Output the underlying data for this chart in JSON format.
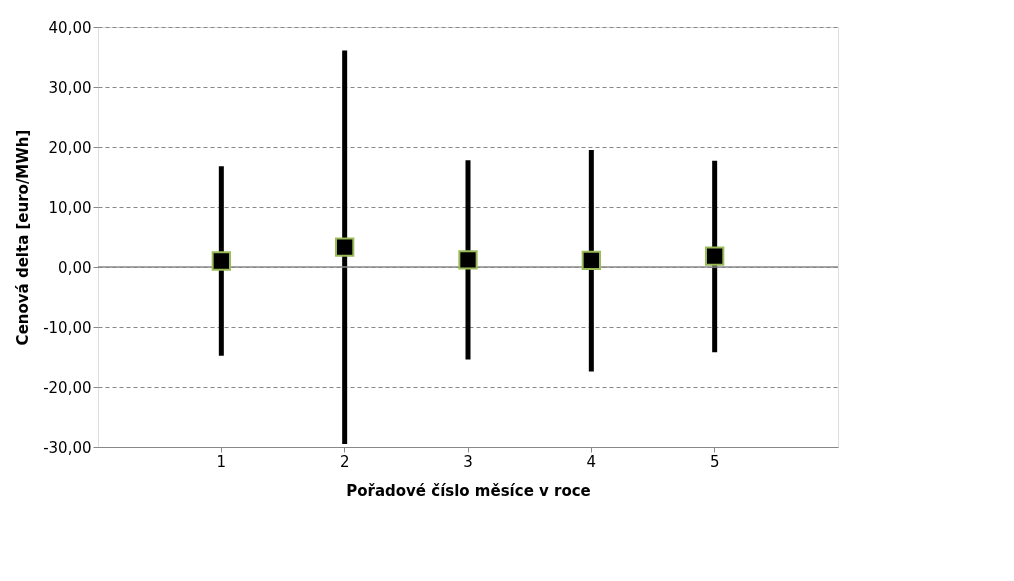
{
  "chart_data": {
    "type": "scatter",
    "xlabel": "Pořadové číslo měsíce v roce",
    "ylabel": "Cenová delta [euro/MWh]",
    "categories": [
      "1",
      "2",
      "3",
      "4",
      "5"
    ],
    "series": [
      {
        "color": "#000000",
        "values": [
          1.0,
          3.3,
          1.2,
          1.1,
          1.8
        ],
        "errors": [
          [
            -14.8,
            16.8
          ],
          [
            -29.5,
            36.1
          ],
          [
            -15.4,
            17.8
          ],
          [
            -17.4,
            19.5
          ],
          [
            -14.2,
            17.7
          ]
        ]
      }
    ],
    "marker": "square",
    "grid": "y",
    "ylim": [
      -30,
      40
    ],
    "yticks": [
      {
        "value": -30,
        "label": "-30,00"
      },
      {
        "value": -20,
        "label": "-20,00"
      },
      {
        "value": -10,
        "label": "-10,00"
      },
      {
        "value": 0,
        "label": "0,00"
      },
      {
        "value": 10,
        "label": "10,00"
      },
      {
        "value": 20,
        "label": "20,00"
      },
      {
        "value": 30,
        "label": "30,00"
      },
      {
        "value": 40,
        "label": "40,00"
      }
    ]
  }
}
